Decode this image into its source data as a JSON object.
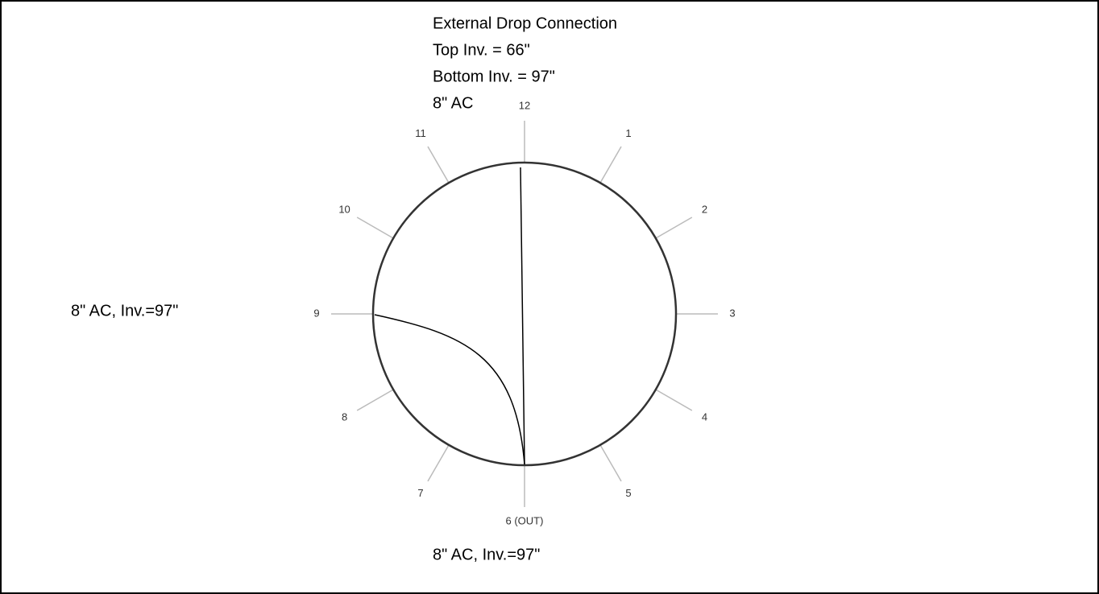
{
  "header": {
    "lines": [
      "External Drop Connection",
      "Top Inv. = 66\"",
      "Bottom Inv. = 97\"",
      "8\" AC"
    ]
  },
  "inlet_label": "8\" AC, Inv.=97\"",
  "outlet_label": "8\" AC, Inv.=97\"",
  "clock": {
    "positions": [
      "1",
      "2",
      "3",
      "4",
      "5",
      "6 (OUT)",
      "7",
      "8",
      "9",
      "10",
      "11",
      "12"
    ]
  }
}
